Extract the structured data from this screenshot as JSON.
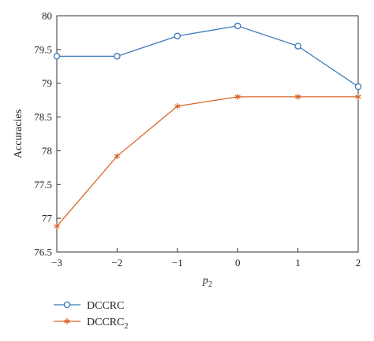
{
  "chart_data": {
    "type": "line",
    "title": "",
    "xlabel_base": "p",
    "xlabel_sub": "2",
    "ylabel": "Accuracies",
    "x": [
      -3,
      -2,
      -1,
      0,
      1,
      2
    ],
    "xlim": [
      -3,
      2
    ],
    "ylim": [
      76.5,
      80
    ],
    "xticks": [
      "−3",
      "−2",
      "−1",
      "0",
      "1",
      "2"
    ],
    "yticks": [
      "76.5",
      "77",
      "77.5",
      "78",
      "78.5",
      "79",
      "79.5",
      "80"
    ],
    "ytick_values": [
      76.5,
      77,
      77.5,
      78,
      78.5,
      79,
      79.5,
      80
    ],
    "grid": false,
    "legend_position": "bottom-left",
    "series": [
      {
        "name": "DCCRC",
        "name_sub": "",
        "color": "#3a78b8",
        "marker": "circle",
        "values": [
          79.4,
          79.4,
          79.7,
          79.85,
          79.55,
          78.95
        ]
      },
      {
        "name": "DCCRC",
        "name_sub": "2",
        "color": "#d9652b",
        "marker": "asterisk",
        "values": [
          76.88,
          77.92,
          78.66,
          78.8,
          78.8,
          78.8
        ]
      }
    ]
  }
}
